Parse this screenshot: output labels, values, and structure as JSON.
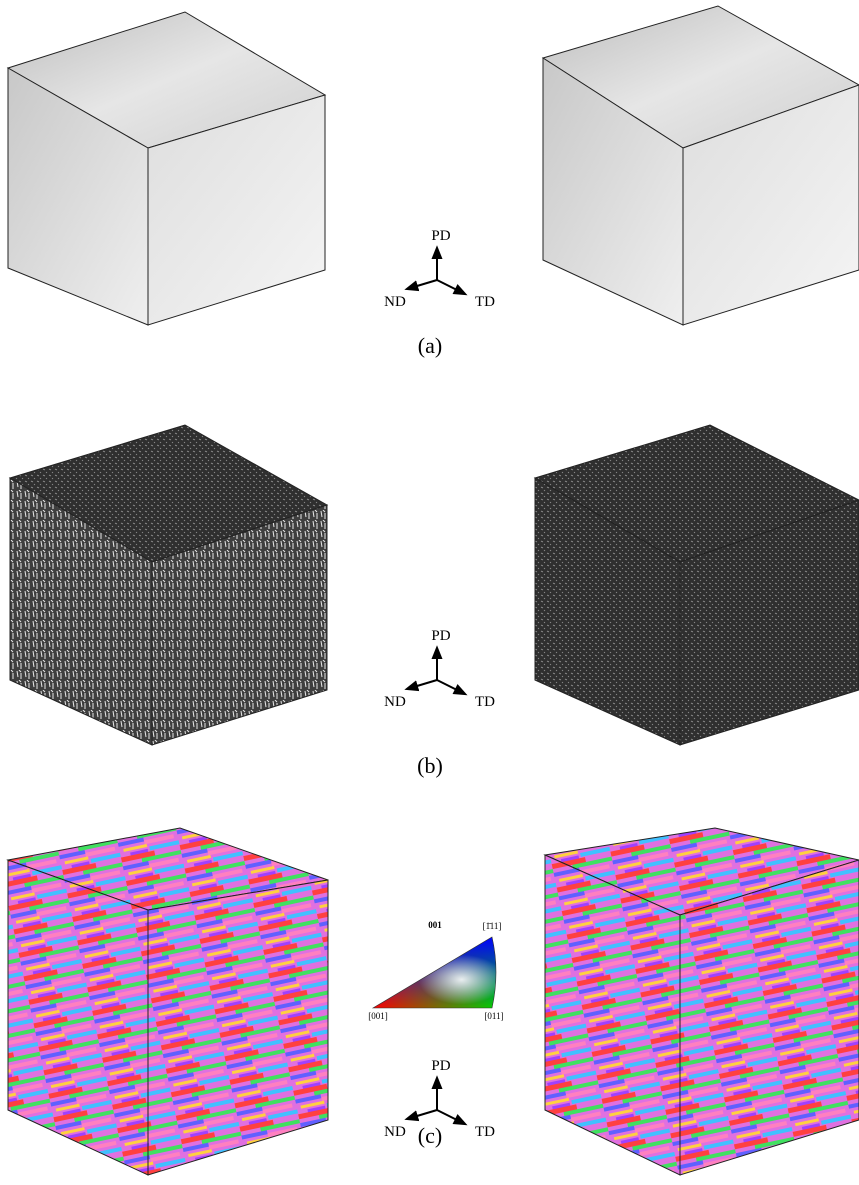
{
  "panels": [
    {
      "label": "(a)",
      "axes": {
        "up": "PD",
        "left": "ND",
        "right": "TD"
      }
    },
    {
      "label": "(b)",
      "axes": {
        "up": "PD",
        "left": "ND",
        "right": "TD"
      }
    },
    {
      "label": "(c)",
      "axes": {
        "up": "PD",
        "left": "ND",
        "right": "TD"
      }
    }
  ],
  "ipf_legend": {
    "title": "001",
    "corner_top": "[1̄11]",
    "corner_left": "[001]",
    "corner_right": "[011]"
  }
}
